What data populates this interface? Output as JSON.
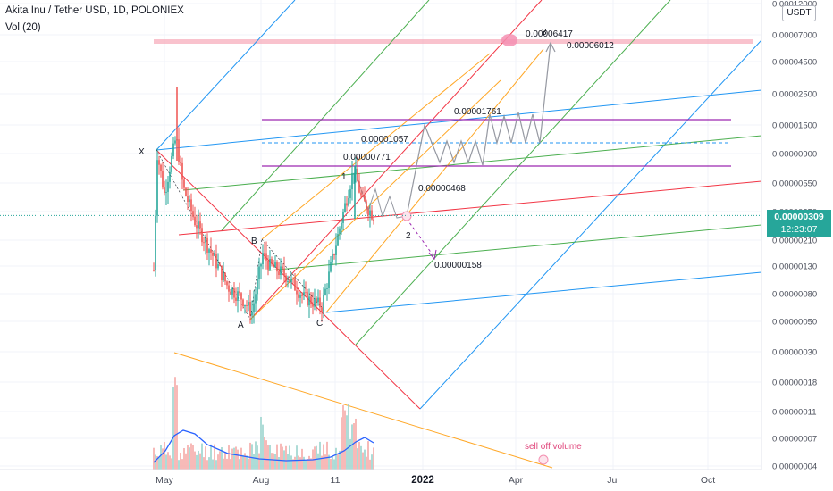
{
  "header": {
    "title": "Akita Inu / Tether USD, 1D, POLONIEX",
    "volume": "Vol (20)"
  },
  "currency_button": "USDT",
  "price_tag": {
    "price": "0.00000309",
    "countdown": "12:23:07"
  },
  "chart_data": {
    "type": "candlestick",
    "title": "Akita Inu / Tether USD, 1D, POLONIEX",
    "y_scale": "log",
    "y_ticks": [
      "0.00012000",
      "0.00007000",
      "0.00004500",
      "0.00002500",
      "0.00001500",
      "0.00000900",
      "0.00000550",
      "0.00000350",
      "0.00000210",
      "0.00000130",
      "0.00000080",
      "0.00000050",
      "0.00000030",
      "0.00000018",
      "0.00000011",
      "0.00000007",
      "0.00000004"
    ],
    "x_ticks": [
      "May",
      "Aug",
      "11",
      "2022",
      "Apr",
      "Jul",
      "Oct"
    ],
    "last_price": 3.09e-06,
    "levels": [
      {
        "label": "0.00006417",
        "value": 6.417e-05
      },
      {
        "label": "0.00006012",
        "value": 6.012e-05
      },
      {
        "label": "0.00001761",
        "value": 1.761e-05
      },
      {
        "label": "0.00001057",
        "value": 1.057e-05
      },
      {
        "label": "0.00000771",
        "value": 7.71e-06
      },
      {
        "label": "0.00000468",
        "value": 4.68e-06
      },
      {
        "label": "0.00000158",
        "value": 1.58e-06
      }
    ],
    "wave_labels": [
      "X",
      "A",
      "B",
      "C",
      "1",
      "2",
      "3"
    ],
    "annotations": [
      "sell off volume"
    ],
    "colors": {
      "up": "#26a69a",
      "down": "#ef5350",
      "pitchfork_red": "#f23645",
      "pitchfork_green": "#4caf50",
      "pitchfork_blue": "#2196f3",
      "orange": "#ffa726",
      "purple": "#9c27b0",
      "volume_ma": "#2962ff",
      "projection": "#9598a1"
    }
  }
}
